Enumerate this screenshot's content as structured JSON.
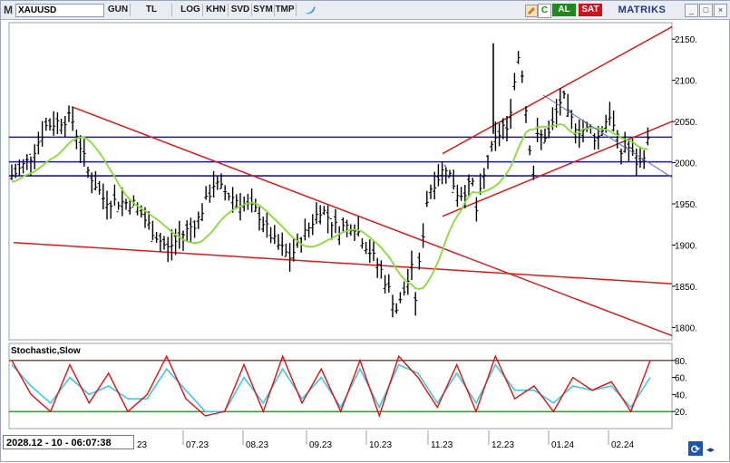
{
  "toolbar": {
    "m_label": "M",
    "symbol": "XAUUSD",
    "period": "GUN",
    "currency": "TL",
    "items": [
      "LOG",
      "KHN",
      "SVD",
      "SYM",
      "TMP"
    ],
    "c_label": "C",
    "buy_label": "AL",
    "sell_label": "SAT",
    "brand": "MATRIKS",
    "buy_color": "#1e8a1e",
    "sell_color": "#d0101a",
    "brand_color": "#1a3a8a"
  },
  "price_axis": {
    "ticks": [
      "2150.",
      "2100.",
      "2050.",
      "2000.",
      "1950.",
      "1900.",
      "1850.",
      "1800."
    ]
  },
  "stochastic": {
    "title": "Stochastic,Slow",
    "ticks": [
      "80.",
      "60.",
      "40.",
      "20."
    ],
    "k_color": "#e01010",
    "d_color": "#40c8e0"
  },
  "time_axis": {
    "labels": [
      "07.23",
      "08.23",
      "09.23",
      "10.23",
      "11.23",
      "12.23",
      "01.24",
      "02.24"
    ],
    "partial_label": "23"
  },
  "datetime": "2028.12 - 10 - 06:07:38",
  "colors": {
    "candle": "#000000",
    "trendline": "#e01818",
    "horizontal": "#1a1aa0",
    "ma": "#88dd33",
    "thin_trend": "#5a6ad0"
  },
  "chart_data": {
    "type": "candlestick",
    "symbol": "XAUUSD",
    "ylim": [
      1785,
      2170
    ],
    "horizontal_levels": [
      2031,
      2001,
      1984
    ],
    "trendlines": [
      {
        "from": [
          "06.23",
          2068
        ],
        "to": [
          "03.24",
          1790
        ]
      },
      {
        "from": [
          "05.23",
          1903
        ],
        "to": [
          "03.24",
          1853
        ]
      },
      {
        "from": [
          "11.23",
          2011
        ],
        "to": [
          "03.24",
          2165
        ]
      },
      {
        "from": [
          "11.23",
          1935
        ],
        "to": [
          "03.24",
          2050
        ]
      }
    ],
    "price_path": [
      [
        "05.23",
        1985,
        2005,
        2045
      ],
      [
        "06.23",
        2055,
        1990,
        1955
      ],
      [
        "06.23b",
        1950,
        1920,
        1895
      ],
      [
        "07.23",
        1930,
        1975,
        1960
      ],
      [
        "08.23",
        1940,
        1905,
        1885
      ],
      [
        "09.23",
        1945,
        1920,
        1925
      ],
      [
        "10.23",
        1870,
        1820,
        1815
      ],
      [
        "10.23b",
        1870,
        1965,
        2000
      ],
      [
        "11.23",
        1990,
        1960,
        1935
      ],
      [
        "11.23b",
        1975,
        2010,
        2025
      ],
      [
        "12.23",
        2045,
        2140,
        2030
      ],
      [
        "12.23b",
        1980,
        2035,
        2060
      ],
      [
        "01.24",
        2085,
        2040,
        2025
      ],
      [
        "01.24b",
        2040,
        2060,
        2025
      ],
      [
        "02.24",
        2005,
        1995,
        2015
      ],
      [
        "02.24b",
        2025,
        2032,
        2030
      ]
    ],
    "stochastic_k": [
      80,
      40,
      20,
      75,
      30,
      65,
      20,
      40,
      85,
      35,
      15,
      20,
      75,
      20,
      85,
      30,
      70,
      20,
      80,
      15,
      85,
      60,
      25,
      75,
      20,
      85,
      35,
      50,
      20,
      60,
      45,
      55,
      20,
      80
    ],
    "stochastic_d": [
      75,
      50,
      30,
      60,
      40,
      50,
      35,
      35,
      70,
      45,
      20,
      20,
      60,
      30,
      70,
      35,
      60,
      25,
      70,
      25,
      75,
      65,
      30,
      65,
      30,
      75,
      45,
      45,
      30,
      50,
      45,
      50,
      25,
      60
    ]
  }
}
